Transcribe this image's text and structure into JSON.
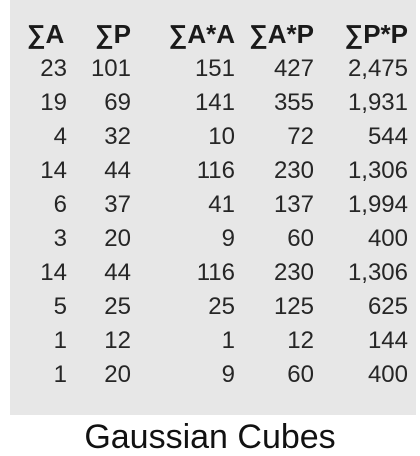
{
  "table": {
    "headers": [
      "∑A",
      "∑P",
      "∑A*A",
      "∑A*P",
      "∑P*P"
    ],
    "rows": [
      [
        "23",
        "101",
        "151",
        "427",
        "2,475"
      ],
      [
        "19",
        "69",
        "141",
        "355",
        "1,931"
      ],
      [
        "4",
        "32",
        "10",
        "72",
        "544"
      ],
      [
        "14",
        "44",
        "116",
        "230",
        "1,306"
      ],
      [
        "6",
        "37",
        "41",
        "137",
        "1,994"
      ],
      [
        "3",
        "20",
        "9",
        "60",
        "400"
      ],
      [
        "14",
        "44",
        "116",
        "230",
        "1,306"
      ],
      [
        "5",
        "25",
        "25",
        "125",
        "625"
      ],
      [
        "1",
        "12",
        "1",
        "12",
        "144"
      ],
      [
        "1",
        "20",
        "9",
        "60",
        "400"
      ]
    ]
  },
  "caption": "Gaussian Cubes",
  "colors": {
    "panel_background": "#e7e7e7",
    "text": "#1a1a1a"
  }
}
